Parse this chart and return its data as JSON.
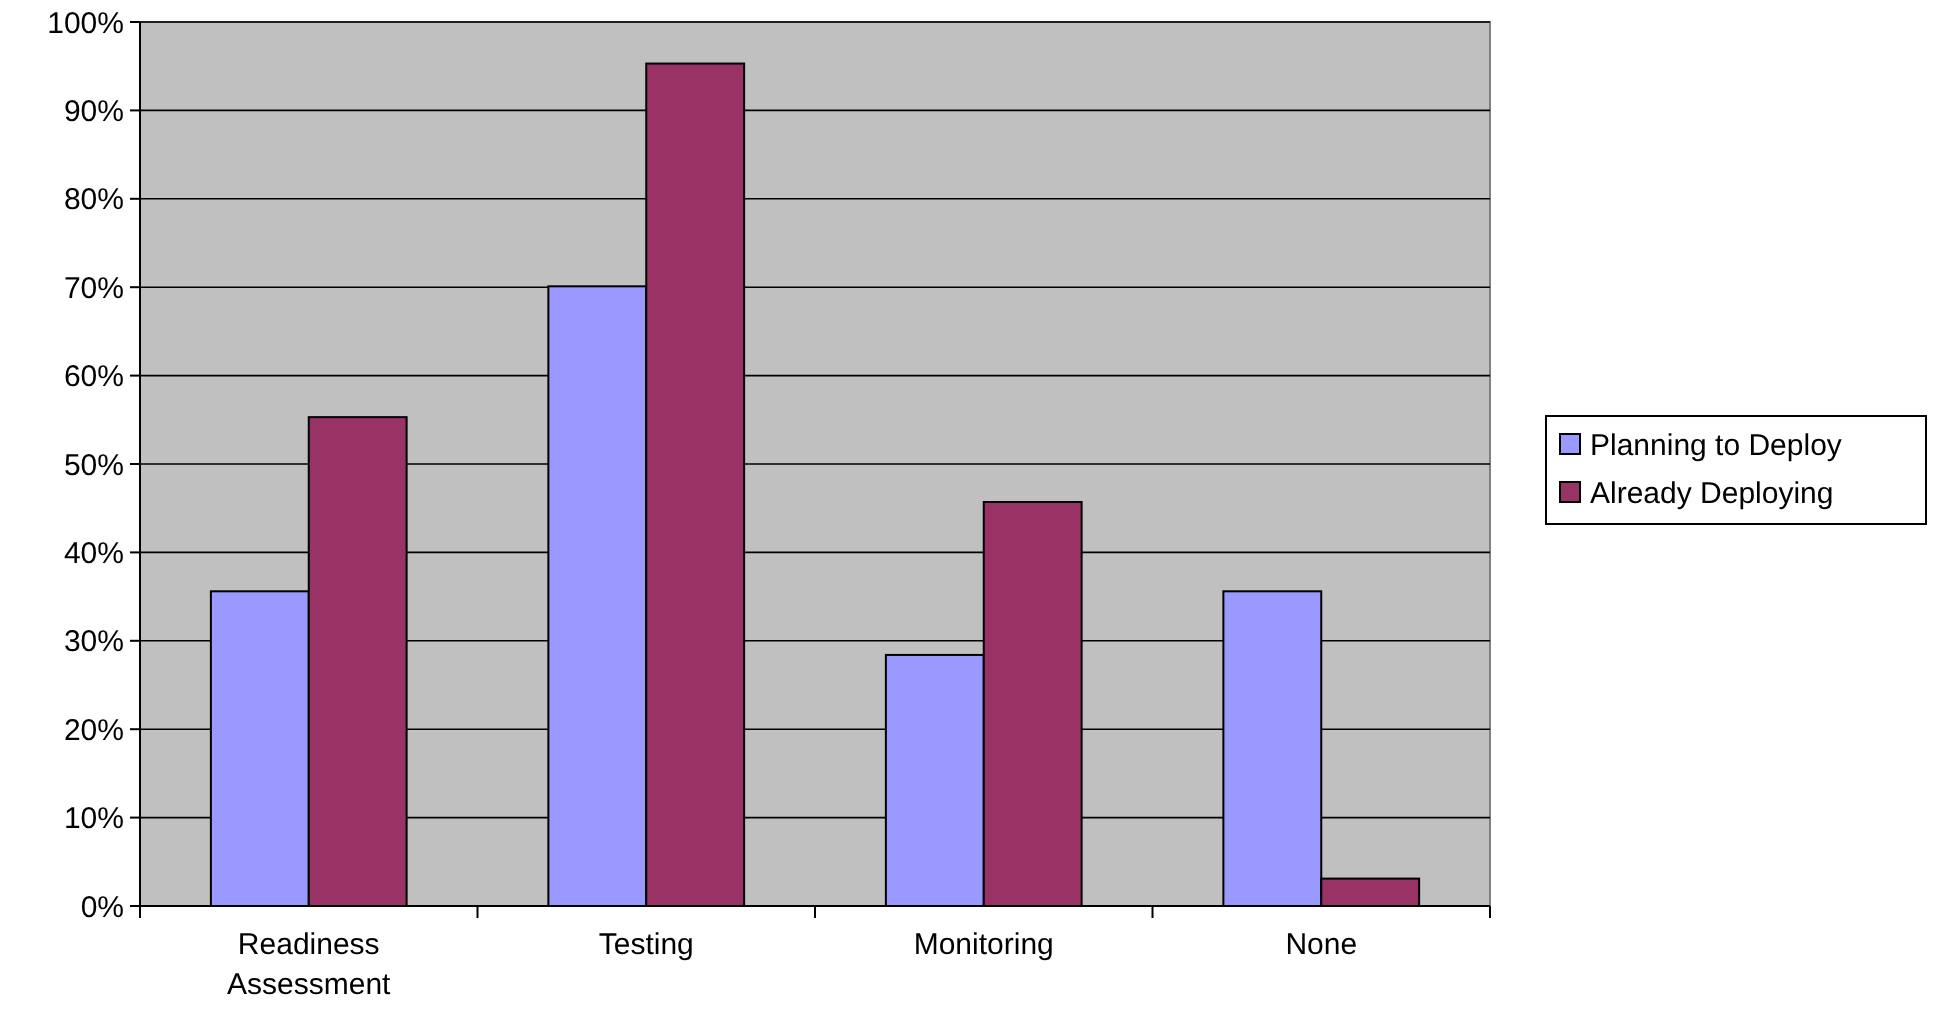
{
  "chart_data": {
    "type": "bar",
    "categories": [
      "Readiness Assessment",
      "Testing",
      "Monitoring",
      "None"
    ],
    "series": [
      {
        "name": "Planning to Deploy",
        "color": "#9999ff",
        "values": [
          35.6,
          70.1,
          28.4,
          35.6
        ]
      },
      {
        "name": "Already Deploying",
        "color": "#993366",
        "values": [
          55.3,
          95.3,
          45.7,
          3.1
        ]
      }
    ],
    "ylim": [
      0,
      100
    ],
    "yticks": [
      {
        "value": 0,
        "label": "0%"
      },
      {
        "value": 10,
        "label": "10%"
      },
      {
        "value": 20,
        "label": "20%"
      },
      {
        "value": 30,
        "label": "30%"
      },
      {
        "value": 40,
        "label": "40%"
      },
      {
        "value": 50,
        "label": "50%"
      },
      {
        "value": 60,
        "label": "60%"
      },
      {
        "value": 70,
        "label": "70%"
      },
      {
        "value": 80,
        "label": "80%"
      },
      {
        "value": 90,
        "label": "90%"
      },
      {
        "value": 100,
        "label": "100%"
      }
    ],
    "grid": "y",
    "legend": "right"
  }
}
